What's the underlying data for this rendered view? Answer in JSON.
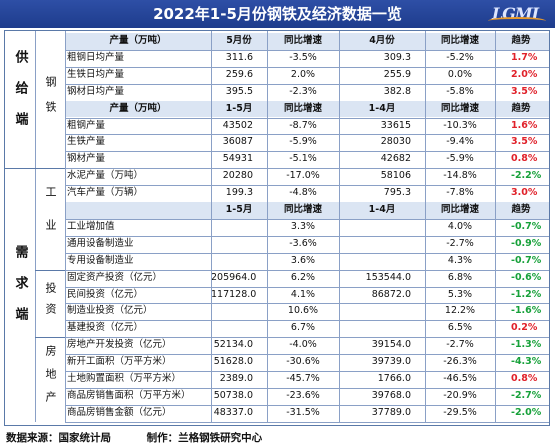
{
  "title": "2022年1-5月份钢铁及经济数据一览",
  "logo_text": "LGMI",
  "sections": {
    "supply": "供给端",
    "demand": "需求端"
  },
  "subgroups": {
    "steel": "钢铁",
    "industry": "工业",
    "investment": "投资",
    "realestate": "房地产"
  },
  "rows": [
    {
      "kind": "header",
      "c": [
        "产量（万吨）",
        "5月份",
        "同比增速",
        "4月份",
        "同比增速",
        "趋势"
      ]
    },
    {
      "c": [
        "粗钢日均产量",
        "311.6",
        "-3.5%",
        "309.3",
        "-5.2%",
        "1.7%"
      ],
      "trend": "up"
    },
    {
      "c": [
        "生铁日均产量",
        "259.6",
        "2.0%",
        "255.9",
        "0.0%",
        "2.0%"
      ],
      "trend": "up"
    },
    {
      "c": [
        "钢材日均产量",
        "395.5",
        "-2.3%",
        "382.8",
        "-5.8%",
        "3.5%"
      ],
      "trend": "up"
    },
    {
      "kind": "header",
      "c": [
        "产量（万吨）",
        "1-5月",
        "同比增速",
        "1-4月",
        "同比增速",
        "趋势"
      ]
    },
    {
      "c": [
        "粗钢产量",
        "43502",
        "-8.7%",
        "33615",
        "-10.3%",
        "1.6%"
      ],
      "trend": "up"
    },
    {
      "c": [
        "生铁产量",
        "36087",
        "-5.9%",
        "28030",
        "-9.4%",
        "3.5%"
      ],
      "trend": "up"
    },
    {
      "c": [
        "钢材产量",
        "54931",
        "-5.1%",
        "42682",
        "-5.9%",
        "0.8%"
      ],
      "trend": "up"
    },
    {
      "c": [
        "水泥产量（万吨）",
        "20280",
        "-17.0%",
        "58106",
        "-14.8%",
        "-2.2%"
      ],
      "trend": "down"
    },
    {
      "c": [
        "汽车产量（万辆）",
        "199.3",
        "-4.8%",
        "795.3",
        "-7.8%",
        "3.0%"
      ],
      "trend": "up"
    },
    {
      "kind": "header",
      "c": [
        "",
        "1-5月",
        "同比增速",
        "1-4月",
        "同比增速",
        "趋势"
      ]
    },
    {
      "c": [
        "工业增加值",
        "",
        "3.3%",
        "",
        "4.0%",
        "-0.7%"
      ],
      "trend": "down"
    },
    {
      "c": [
        "通用设备制造业",
        "",
        "-3.6%",
        "",
        "-2.7%",
        "-0.9%"
      ],
      "trend": "down"
    },
    {
      "c": [
        "专用设备制造业",
        "",
        "3.6%",
        "",
        "4.3%",
        "-0.7%"
      ],
      "trend": "down"
    },
    {
      "c": [
        "固定资产投资（亿元）",
        "205964.0",
        "6.2%",
        "153544.0",
        "6.8%",
        "-0.6%"
      ],
      "trend": "down"
    },
    {
      "c": [
        "民间投资（亿元）",
        "117128.0",
        "4.1%",
        "86872.0",
        "5.3%",
        "-1.2%"
      ],
      "trend": "down"
    },
    {
      "c": [
        "制造业投资（亿元）",
        "",
        "10.6%",
        "",
        "12.2%",
        "-1.6%"
      ],
      "trend": "down"
    },
    {
      "c": [
        "基建投资（亿元）",
        "",
        "6.7%",
        "",
        "6.5%",
        "0.2%"
      ],
      "trend": "up"
    },
    {
      "c": [
        "房地产开发投资（亿元）",
        "52134.0",
        "-4.0%",
        "39154.0",
        "-2.7%",
        "-1.3%"
      ],
      "trend": "down"
    },
    {
      "c": [
        "新开工面积（万平方米）",
        "51628.0",
        "-30.6%",
        "39739.0",
        "-26.3%",
        "-4.3%"
      ],
      "trend": "down"
    },
    {
      "c": [
        "土地购置面积（万平方米）",
        "2389.0",
        "-45.7%",
        "1766.0",
        "-46.5%",
        "0.8%"
      ],
      "trend": "up"
    },
    {
      "c": [
        "商品房销售面积（万平方米）",
        "50738.0",
        "-23.6%",
        "39768.0",
        "-20.9%",
        "-2.7%"
      ],
      "trend": "down"
    },
    {
      "c": [
        "商品房销售金额（亿元）",
        "48337.0",
        "-31.5%",
        "37789.0",
        "-29.5%",
        "-2.0%"
      ],
      "trend": "down"
    }
  ],
  "colors": {
    "up": "#e0212a",
    "down": "#17a13a",
    "header_bg": "#dbe5f3",
    "banner": "#1e3c8c"
  },
  "footer": {
    "source": "数据来源：国家统计局",
    "author": "制作：兰格钢铁研究中心"
  }
}
